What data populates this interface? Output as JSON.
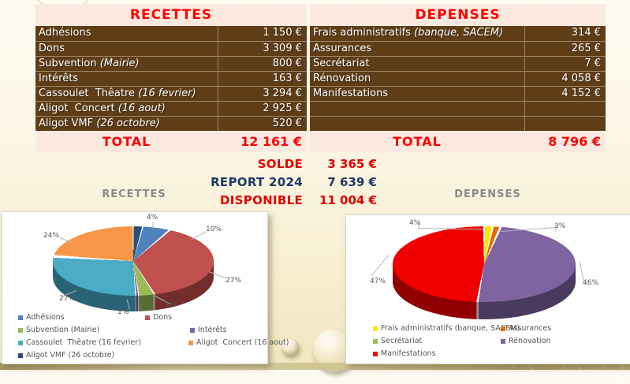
{
  "colors": {
    "accent_red": "#FE0000",
    "report_navy": "#1F3864",
    "table_body_brown": "#5E3D17",
    "table_header_pink": "#FBE9DF",
    "chart_title_gray": "#8A8A8A",
    "page_background_cream": "#FBF5E4"
  },
  "tables": {
    "recettes": {
      "title": "RECETTES",
      "rows": [
        {
          "label": "Adhésions",
          "label_italic": "",
          "value": "1 150 €"
        },
        {
          "label": "Dons",
          "label_italic": "",
          "value": "3 309 €"
        },
        {
          "label": "Subvention ",
          "label_italic": "(Mairie)",
          "value": "800 €"
        },
        {
          "label": "Intérêts",
          "label_italic": "",
          "value": "163 €"
        },
        {
          "label": "Cassoulet  Thêatre ",
          "label_italic": "(16 fevrier)",
          "value": "3 294 €"
        },
        {
          "label": "Aligot  Concert ",
          "label_italic": "(16 aout)",
          "value": "2 925 €"
        },
        {
          "label": "Aligot VMF ",
          "label_italic": "(26 octobre)",
          "value": "520 €"
        }
      ],
      "total_label": "TOTAL",
      "total_value": "12 161 €"
    },
    "depenses": {
      "title": "DEPENSES",
      "rows": [
        {
          "label": "Frais administratifs ",
          "label_italic": "(banque, SACEM)",
          "value": "314 €"
        },
        {
          "label": "Assurances",
          "label_italic": "",
          "value": "265 €"
        },
        {
          "label": "Secrétariat",
          "label_italic": "",
          "value": "7 €"
        },
        {
          "label": "Rénovation",
          "label_italic": "",
          "value": "4 058 €"
        },
        {
          "label": "Manifestations",
          "label_italic": "",
          "value": "4 152 €"
        },
        {
          "label": "",
          "label_italic": "",
          "value": ""
        },
        {
          "label": "",
          "label_italic": "",
          "value": ""
        }
      ],
      "total_label": "TOTAL",
      "total_value": "8 796 €"
    }
  },
  "summary": {
    "rows": [
      {
        "label": "SOLDE",
        "value": "3 365 €",
        "color": "#E00000"
      },
      {
        "label": "REPORT 2024",
        "value": "7 639 €",
        "color": "#1F3864"
      },
      {
        "label": "DISPONIBLE",
        "value": "11 004 €",
        "color": "#E00000"
      }
    ]
  },
  "chart_data": [
    {
      "type": "pie",
      "title": "RECETTES",
      "legend_position": "bottom",
      "style": "3d-exploded",
      "slices": [
        {
          "label": "Adhésions",
          "value_eur": 1150,
          "percent": 9.5,
          "percent_label": "10%",
          "color": "#4F81BD"
        },
        {
          "label": "Dons",
          "value_eur": 3309,
          "percent": 27.2,
          "percent_label": "27%",
          "color": "#C0504D"
        },
        {
          "label": "Subvention (Mairie)",
          "value_eur": 800,
          "percent": 6.6,
          "percent_label": "7%",
          "color": "#9BBB59"
        },
        {
          "label": "Intérêts",
          "value_eur": 163,
          "percent": 1.3,
          "percent_label": "1%",
          "color": "#8064A2"
        },
        {
          "label": "Cassoulet  Thêatre (16 fevrier)",
          "value_eur": 3294,
          "percent": 27.1,
          "percent_label": "27%",
          "color": "#4BACC6"
        },
        {
          "label": "Aligot  Concert (16 aout)",
          "value_eur": 2925,
          "percent": 24.1,
          "percent_label": "24%",
          "color": "#F79646"
        },
        {
          "label": "Aligot VMF (26 octobre)",
          "value_eur": 520,
          "percent": 4.3,
          "percent_label": "4%",
          "color": "#2C4D75"
        }
      ]
    },
    {
      "type": "pie",
      "title": "DEPENSES",
      "legend_position": "bottom",
      "style": "3d-exploded",
      "slices": [
        {
          "label": "Frais administratifs (banque, SACEM)",
          "value_eur": 314,
          "percent": 3.6,
          "percent_label": "4%",
          "color": "#FFE600"
        },
        {
          "label": "Assurances",
          "value_eur": 265,
          "percent": 3.0,
          "percent_label": "3%",
          "color": "#E36C0A"
        },
        {
          "label": "Secrétariat",
          "value_eur": 7,
          "percent": 0.1,
          "percent_label": "",
          "color": "#9BBB59"
        },
        {
          "label": "Rénovation",
          "value_eur": 4058,
          "percent": 46.1,
          "percent_label": "46%",
          "color": "#8064A2"
        },
        {
          "label": "Manifestations",
          "value_eur": 4152,
          "percent": 47.2,
          "percent_label": "47%",
          "color": "#F00000"
        }
      ]
    }
  ]
}
